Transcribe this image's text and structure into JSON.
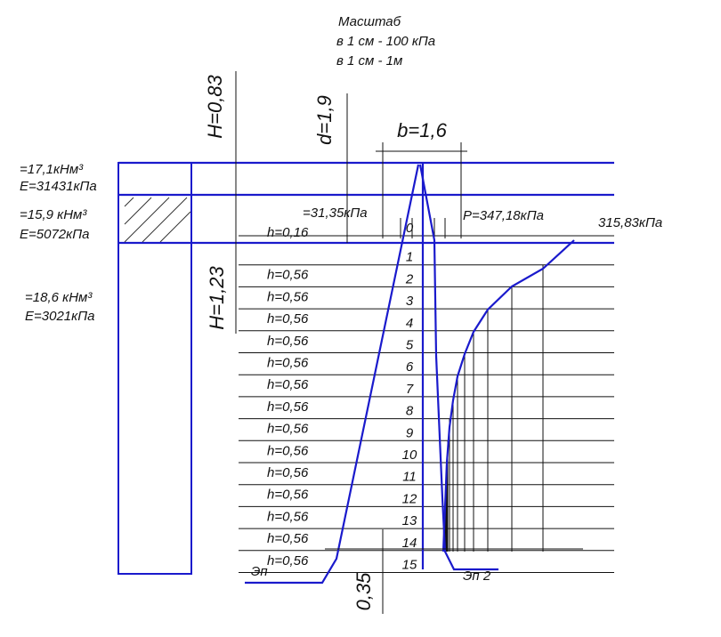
{
  "scale": {
    "title": "Масштаб",
    "line1": "в 1 см -  100 кПа",
    "line2": "в 1 см -  1м"
  },
  "dimensions": {
    "h_top": "H=0,83",
    "d": "d=1,9",
    "b": "b=1,6",
    "h_mid": "H=1,23",
    "bottom": "0,35"
  },
  "layers": [
    {
      "gamma": "=17,1кНм³",
      "e": "E=31431кПа"
    },
    {
      "gamma": "=15,9 кНм³",
      "e": "E=5072кПа"
    },
    {
      "gamma": "=18,6 кНм³",
      "e": "E=3021кПа"
    }
  ],
  "loads": {
    "natural": "=31,35кПа",
    "pressure": "P=347,18кПа",
    "additional": "315,83кПа"
  },
  "rows": {
    "heights": [
      "h=0,16",
      "h=0,56",
      "h=0,56",
      "h=0,56",
      "h=0,56",
      "h=0,56",
      "h=0,56",
      "h=0,56",
      "h=0,56",
      "h=0,56",
      "h=0,56",
      "h=0,56",
      "h=0,56",
      "h=0,56",
      "h=0,56"
    ],
    "points": [
      "0",
      "1",
      "2",
      "3",
      "4",
      "5",
      "6",
      "7",
      "8",
      "9",
      "10",
      "11",
      "12",
      "13",
      "14",
      "15"
    ]
  },
  "diagrams": {
    "natural": "Эп",
    "additional": "Эп 2"
  }
}
